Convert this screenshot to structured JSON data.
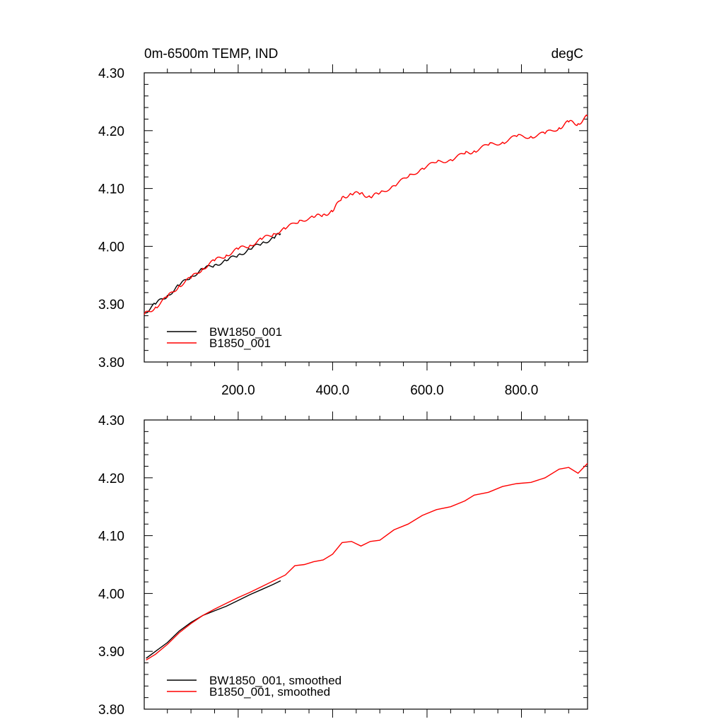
{
  "chart_data": [
    {
      "type": "line",
      "title_left": "0m-6500m TEMP, IND",
      "title_right": "degC",
      "xlabel": "",
      "ylabel": "",
      "xlim": [
        1,
        940
      ],
      "ylim": [
        3.8,
        4.3
      ],
      "grid": false,
      "legend_position": "bottom-left",
      "x_tick_labels": [
        "200.0",
        "400.0",
        "600.0",
        "800.0"
      ],
      "y_tick_labels": [
        "3.80",
        "3.90",
        "4.00",
        "4.10",
        "4.20",
        "4.30"
      ],
      "series": [
        {
          "name": "BW1850_001",
          "color": "#000000",
          "x": [
            1,
            25,
            50,
            75,
            100,
            125,
            150,
            175,
            200,
            225,
            250,
            275,
            290
          ],
          "values": [
            3.885,
            3.9,
            3.915,
            3.932,
            3.948,
            3.96,
            3.968,
            3.975,
            3.985,
            3.995,
            4.005,
            4.015,
            4.022
          ]
        },
        {
          "name": "B1850_001",
          "color": "#ff0000",
          "x": [
            1,
            25,
            50,
            75,
            100,
            125,
            150,
            175,
            200,
            225,
            250,
            275,
            300,
            330,
            360,
            380,
            400,
            420,
            440,
            460,
            480,
            500,
            530,
            560,
            590,
            620,
            650,
            680,
            700,
            730,
            760,
            790,
            820,
            850,
            880,
            900,
            920,
            940
          ],
          "values": [
            3.882,
            3.895,
            3.912,
            3.932,
            3.945,
            3.962,
            3.975,
            3.985,
            3.995,
            4.002,
            4.012,
            4.022,
            4.03,
            4.045,
            4.05,
            4.055,
            4.06,
            4.085,
            4.09,
            4.092,
            4.085,
            4.092,
            4.105,
            4.12,
            4.135,
            4.145,
            4.15,
            4.16,
            4.165,
            4.175,
            4.18,
            4.19,
            4.19,
            4.195,
            4.205,
            4.215,
            4.212,
            4.225
          ]
        }
      ]
    },
    {
      "type": "line",
      "title_left": "",
      "title_right": "",
      "xlabel": "",
      "ylabel": "",
      "xlim": [
        1,
        940
      ],
      "ylim": [
        3.8,
        4.3
      ],
      "grid": false,
      "legend_position": "bottom-left",
      "x_tick_labels": [],
      "y_tick_labels": [
        "3.80",
        "3.90",
        "4.00",
        "4.10",
        "4.20",
        "4.30"
      ],
      "series": [
        {
          "name": "BW1850_001, smoothed",
          "color": "#000000",
          "x": [
            5,
            25,
            50,
            75,
            100,
            125,
            150,
            175,
            200,
            225,
            250,
            275,
            290
          ],
          "values": [
            3.888,
            3.9,
            3.915,
            3.935,
            3.95,
            3.962,
            3.97,
            3.978,
            3.988,
            3.998,
            4.007,
            4.016,
            4.022
          ]
        },
        {
          "name": "B1850_001, smoothed",
          "color": "#ff0000",
          "x": [
            5,
            25,
            50,
            75,
            100,
            125,
            150,
            175,
            200,
            225,
            250,
            275,
            300,
            320,
            340,
            360,
            380,
            400,
            420,
            440,
            460,
            480,
            500,
            530,
            560,
            590,
            620,
            650,
            680,
            700,
            730,
            760,
            790,
            820,
            850,
            880,
            900,
            920,
            940
          ],
          "values": [
            3.885,
            3.895,
            3.912,
            3.932,
            3.948,
            3.962,
            3.973,
            3.983,
            3.993,
            4.002,
            4.012,
            4.022,
            4.032,
            4.048,
            4.05,
            4.055,
            4.058,
            4.068,
            4.088,
            4.09,
            4.082,
            4.09,
            4.092,
            4.11,
            4.12,
            4.135,
            4.145,
            4.15,
            4.16,
            4.17,
            4.175,
            4.185,
            4.19,
            4.192,
            4.2,
            4.215,
            4.218,
            4.208,
            4.225
          ]
        }
      ]
    }
  ]
}
